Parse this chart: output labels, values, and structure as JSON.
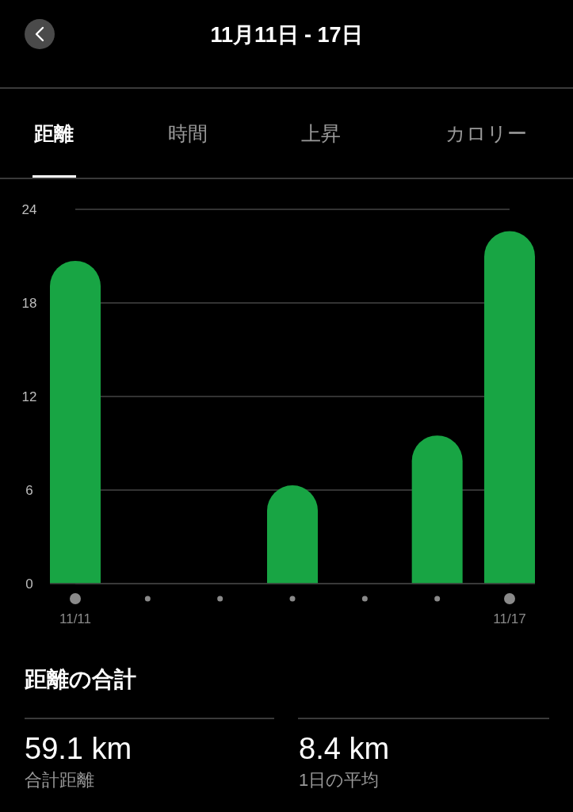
{
  "chart_data": {
    "type": "bar",
    "title": "11月11日 - 17日",
    "categories": [
      "11/11",
      null,
      null,
      null,
      null,
      null,
      "11/17"
    ],
    "values": [
      20.7,
      0,
      0,
      6.3,
      0,
      9.5,
      22.6
    ],
    "color": "#18a544",
    "ylim": [
      0,
      24
    ],
    "yticks": [
      0,
      6,
      12,
      18,
      24
    ],
    "grid": "y",
    "annotations": [
      "距離",
      "時間",
      "上昇",
      "カロリー",
      "距離の合計",
      "59.1 km",
      "合計距離",
      "8.4 km",
      "1日の平均"
    ]
  }
}
